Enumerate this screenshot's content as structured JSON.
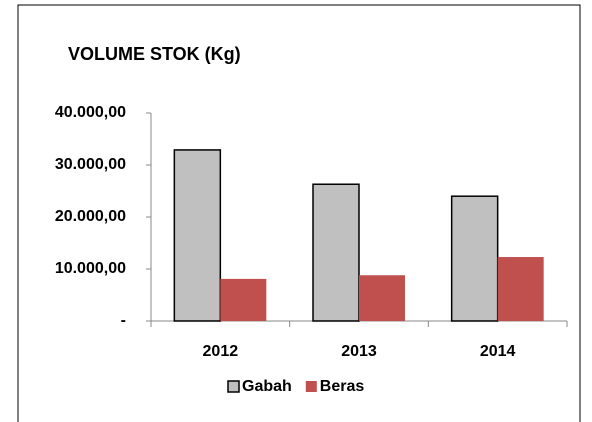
{
  "chart_data": {
    "type": "bar",
    "title": "VOLUME STOK (Kg)",
    "categories": [
      "2012",
      "2013",
      "2014"
    ],
    "series": [
      {
        "name": "Gabah",
        "color": "#c0c0c0",
        "values": [
          32900,
          26300,
          24000
        ]
      },
      {
        "name": "Beras",
        "color": "#c0504d",
        "values": [
          8100,
          8800,
          12300
        ]
      }
    ],
    "ylim": [
      0,
      40000
    ],
    "yticks": [
      {
        "value": 0,
        "label": "-"
      },
      {
        "value": 10000,
        "label": "10.000,00"
      },
      {
        "value": 20000,
        "label": "20.000,00"
      },
      {
        "value": 30000,
        "label": "30.000,00"
      },
      {
        "value": 40000,
        "label": "40.000,00"
      }
    ],
    "legend": "bottom"
  }
}
